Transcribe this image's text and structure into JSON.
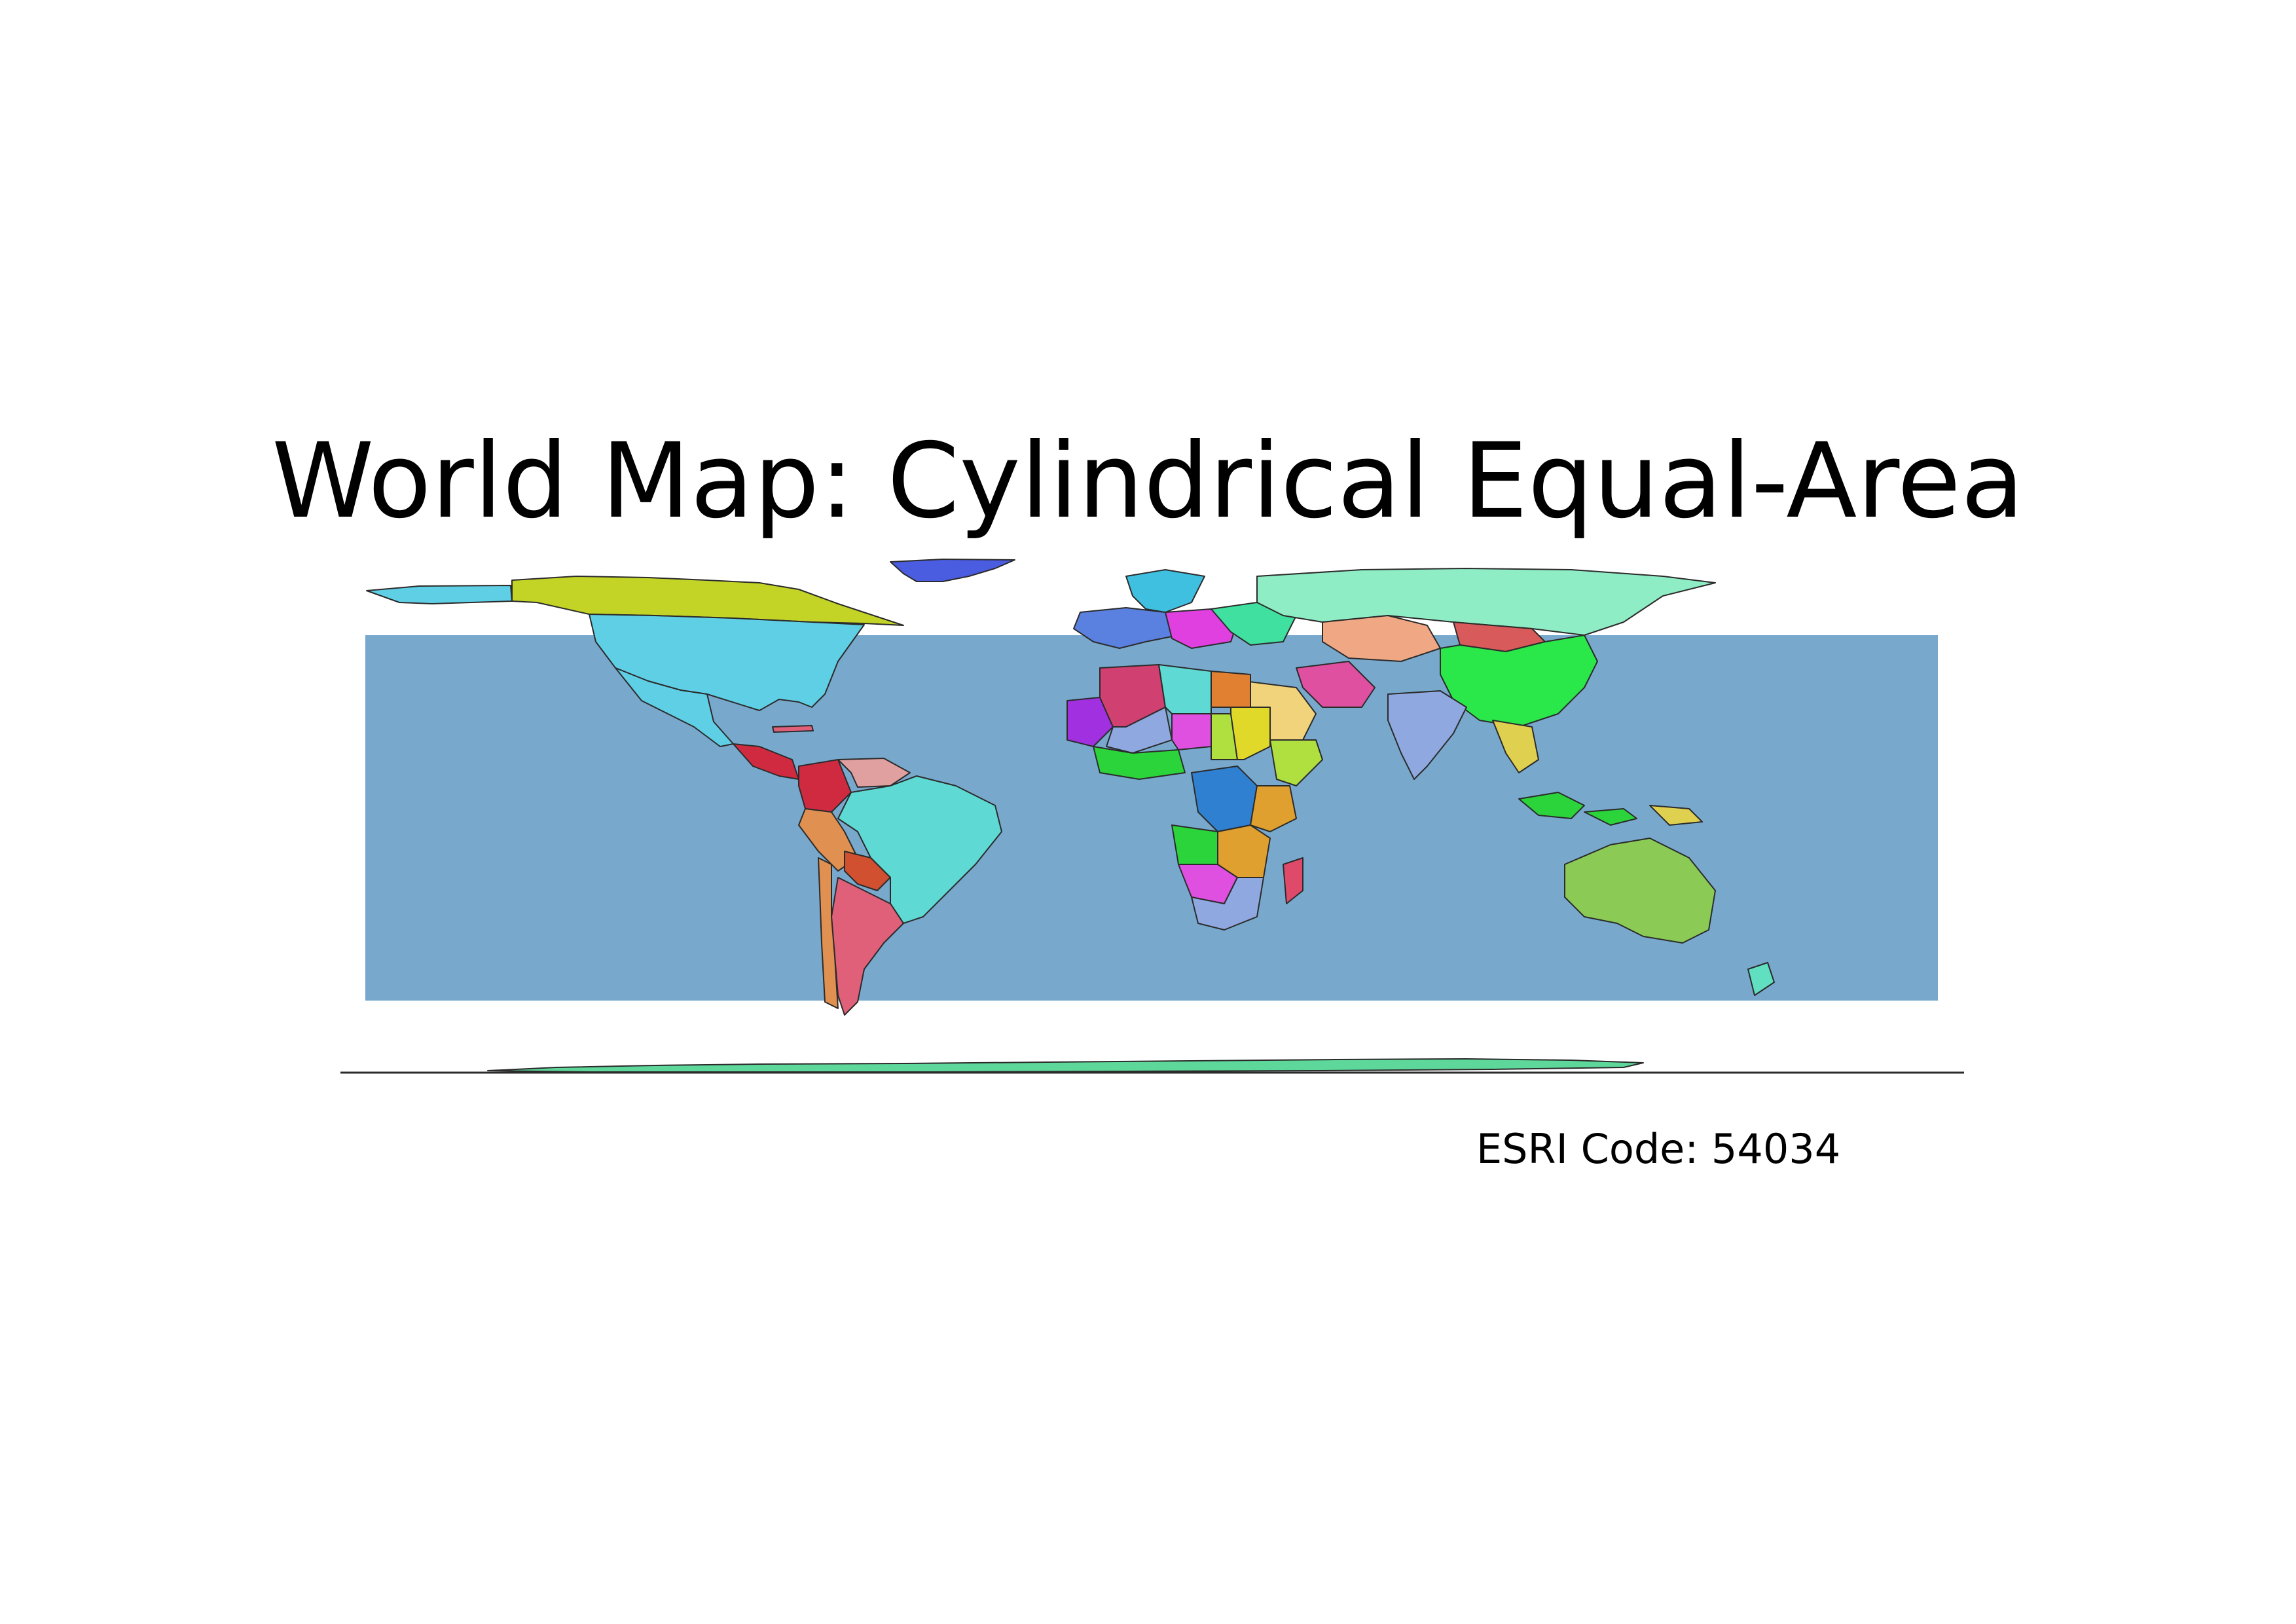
{
  "map": {
    "title": "World Map: Cylindrical Equal-Area",
    "projection_code_text": "ESRI Code: 54034",
    "colors": {
      "ocean": "#78a9cd",
      "border": "#2b2b2b",
      "canada": "#c3d427",
      "usa": "#5fcfe6",
      "greenland": "#4a5ce0",
      "alaska": "#5fcfe6",
      "russia": "#8fedc6",
      "china": "#2be84a",
      "brazil": "#5ed9d4",
      "australia": "#8bcb55",
      "antarctica": "#5ed89a",
      "kazakhstan": "#f0a784",
      "mongolia": "#d95a5a",
      "india": "#8fa8e0",
      "saudi_arabia": "#f0d37a",
      "sudan": "#e0d92a",
      "drc": "#2f80d0",
      "madagascar": "#e04a6a",
      "indonesia": "#2bd43a",
      "argentina": "#e0607a",
      "colombia": "#d02a40",
      "peru": "#e09050",
      "bolivia": "#d05030",
      "algeria": "#d04070",
      "libya": "#5ed9d4",
      "egypt": "#e08030",
      "mali": "#8fa8e0",
      "niger": "#e050e0",
      "chad": "#b0e040",
      "mauritania": "#a030e0",
      "south_africa": "#8fa8e0",
      "iran": "#e050a0",
      "europe_a": "#e040e0",
      "europe_b": "#40e0a0",
      "europe_c": "#5a80e0",
      "scandinavia": "#40c0e0",
      "mexico": "#5fcfe6",
      "venezuela": "#e0a0a0",
      "angola": "#2bd43a",
      "tanzania": "#e0a030",
      "namibia": "#e050e0",
      "png": "#e0d050",
      "new_zealand": "#60e0c0"
    }
  }
}
